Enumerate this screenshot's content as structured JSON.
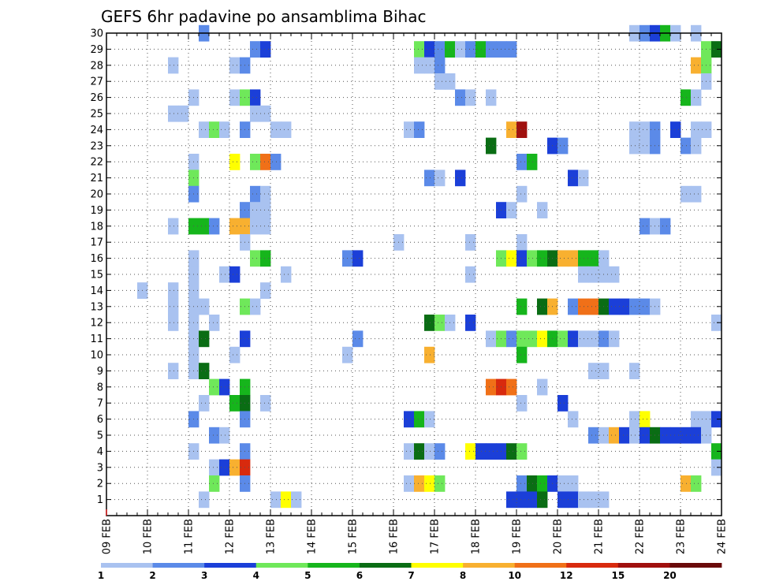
{
  "chart_data": {
    "type": "heatmap",
    "title": "GEFS 6hr padavine po ansamblima Bihac",
    "x_tick_labels": [
      "09 FEB",
      "10 FEB",
      "11 FEB",
      "12 FEB",
      "13 FEB",
      "14 FEB",
      "15 FEB",
      "16 FEB",
      "17 FEB",
      "18 FEB",
      "19 FEB",
      "20 FEB",
      "21 FEB",
      "22 FEB",
      "23 FEB",
      "24 FEB"
    ],
    "y_tick_labels": [
      "1",
      "2",
      "3",
      "4",
      "5",
      "6",
      "7",
      "8",
      "9",
      "10",
      "11",
      "12",
      "13",
      "14",
      "15",
      "16",
      "17",
      "18",
      "19",
      "20",
      "21",
      "22",
      "23",
      "24",
      "25",
      "26",
      "27",
      "28",
      "29",
      "30"
    ],
    "x_range_days": [
      0,
      15
    ],
    "y_range_members": [
      0,
      30
    ],
    "grid": true,
    "legend_position": "bottom",
    "legend": {
      "labels": [
        "1",
        "2",
        "3",
        "4",
        "5",
        "6",
        "7",
        "8",
        "10",
        "12",
        "15",
        "20"
      ],
      "colors": [
        "#a9c2f0",
        "#5b8ae8",
        "#1b3fd8",
        "#6fe85a",
        "#16b51c",
        "#0a6d14",
        "#ffff00",
        "#f8b030",
        "#f07018",
        "#d82a0e",
        "#a0100e",
        "#6a0a0a"
      ]
    },
    "cells": [
      {
        "m": 30,
        "d": 2.25,
        "c": 2
      },
      {
        "m": 30,
        "d": 12.75,
        "c": 1
      },
      {
        "m": 30,
        "d": 13.0,
        "c": 2
      },
      {
        "m": 30,
        "d": 13.25,
        "c": 3
      },
      {
        "m": 30,
        "d": 13.5,
        "c": 5
      },
      {
        "m": 30,
        "d": 13.75,
        "c": 1
      },
      {
        "m": 30,
        "d": 14.25,
        "c": 1
      },
      {
        "m": 29,
        "d": 3.5,
        "c": 2
      },
      {
        "m": 29,
        "d": 3.75,
        "c": 3
      },
      {
        "m": 29,
        "d": 7.5,
        "c": 4
      },
      {
        "m": 29,
        "d": 7.75,
        "c": 3
      },
      {
        "m": 29,
        "d": 8.0,
        "c": 2
      },
      {
        "m": 29,
        "d": 8.25,
        "c": 5
      },
      {
        "m": 29,
        "d": 8.5,
        "c": 1
      },
      {
        "m": 29,
        "d": 8.75,
        "c": 2
      },
      {
        "m": 29,
        "d": 9.0,
        "c": 5
      },
      {
        "m": 29,
        "d": 9.25,
        "c": 2
      },
      {
        "m": 29,
        "d": 9.5,
        "c": 2
      },
      {
        "m": 29,
        "d": 9.75,
        "c": 2
      },
      {
        "m": 29,
        "d": 14.5,
        "c": 4
      },
      {
        "m": 29,
        "d": 14.75,
        "c": 6
      },
      {
        "m": 28,
        "d": 1.5,
        "c": 1
      },
      {
        "m": 28,
        "d": 3.0,
        "c": 1
      },
      {
        "m": 28,
        "d": 3.25,
        "c": 2
      },
      {
        "m": 28,
        "d": 7.5,
        "c": 1
      },
      {
        "m": 28,
        "d": 7.75,
        "c": 1
      },
      {
        "m": 28,
        "d": 8.0,
        "c": 2
      },
      {
        "m": 28,
        "d": 14.25,
        "c": 8
      },
      {
        "m": 28,
        "d": 14.5,
        "c": 4
      },
      {
        "m": 27,
        "d": 8.0,
        "c": 1
      },
      {
        "m": 27,
        "d": 8.25,
        "c": 1
      },
      {
        "m": 27,
        "d": 14.5,
        "c": 1
      },
      {
        "m": 26,
        "d": 2.0,
        "c": 1
      },
      {
        "m": 26,
        "d": 3.0,
        "c": 1
      },
      {
        "m": 26,
        "d": 3.25,
        "c": 4
      },
      {
        "m": 26,
        "d": 3.5,
        "c": 3
      },
      {
        "m": 26,
        "d": 8.5,
        "c": 2
      },
      {
        "m": 26,
        "d": 8.75,
        "c": 1
      },
      {
        "m": 26,
        "d": 9.25,
        "c": 1
      },
      {
        "m": 26,
        "d": 14.0,
        "c": 5
      },
      {
        "m": 26,
        "d": 14.25,
        "c": 1
      },
      {
        "m": 25,
        "d": 1.5,
        "c": 1
      },
      {
        "m": 25,
        "d": 1.75,
        "c": 1
      },
      {
        "m": 25,
        "d": 3.5,
        "c": 1
      },
      {
        "m": 25,
        "d": 3.75,
        "c": 1
      },
      {
        "m": 24,
        "d": 2.25,
        "c": 1
      },
      {
        "m": 24,
        "d": 2.5,
        "c": 4
      },
      {
        "m": 24,
        "d": 2.75,
        "c": 1
      },
      {
        "m": 24,
        "d": 3.25,
        "c": 2
      },
      {
        "m": 24,
        "d": 4.0,
        "c": 1
      },
      {
        "m": 24,
        "d": 4.25,
        "c": 1
      },
      {
        "m": 24,
        "d": 7.25,
        "c": 1
      },
      {
        "m": 24,
        "d": 7.5,
        "c": 2
      },
      {
        "m": 24,
        "d": 9.75,
        "c": 8
      },
      {
        "m": 24,
        "d": 10.0,
        "c": 11
      },
      {
        "m": 24,
        "d": 12.75,
        "c": 1
      },
      {
        "m": 24,
        "d": 13.0,
        "c": 1
      },
      {
        "m": 24,
        "d": 13.25,
        "c": 2
      },
      {
        "m": 24,
        "d": 13.75,
        "c": 3
      },
      {
        "m": 24,
        "d": 14.25,
        "c": 1
      },
      {
        "m": 24,
        "d": 14.5,
        "c": 1
      },
      {
        "m": 23,
        "d": 9.25,
        "c": 6
      },
      {
        "m": 23,
        "d": 10.75,
        "c": 3
      },
      {
        "m": 23,
        "d": 11.0,
        "c": 2
      },
      {
        "m": 23,
        "d": 12.75,
        "c": 1
      },
      {
        "m": 23,
        "d": 13.0,
        "c": 1
      },
      {
        "m": 23,
        "d": 13.25,
        "c": 2
      },
      {
        "m": 23,
        "d": 14.0,
        "c": 2
      },
      {
        "m": 23,
        "d": 14.25,
        "c": 1
      },
      {
        "m": 22,
        "d": 2.0,
        "c": 1
      },
      {
        "m": 22,
        "d": 3.0,
        "c": 7
      },
      {
        "m": 22,
        "d": 3.5,
        "c": 4
      },
      {
        "m": 22,
        "d": 3.75,
        "c": 9
      },
      {
        "m": 22,
        "d": 4.0,
        "c": 2
      },
      {
        "m": 22,
        "d": 10.0,
        "c": 2
      },
      {
        "m": 22,
        "d": 10.25,
        "c": 5
      },
      {
        "m": 21,
        "d": 2.0,
        "c": 4
      },
      {
        "m": 21,
        "d": 7.75,
        "c": 2
      },
      {
        "m": 21,
        "d": 8.0,
        "c": 1
      },
      {
        "m": 21,
        "d": 8.5,
        "c": 3
      },
      {
        "m": 21,
        "d": 11.25,
        "c": 3
      },
      {
        "m": 21,
        "d": 11.5,
        "c": 1
      },
      {
        "m": 20,
        "d": 2.0,
        "c": 2
      },
      {
        "m": 20,
        "d": 3.5,
        "c": 2
      },
      {
        "m": 20,
        "d": 3.75,
        "c": 1
      },
      {
        "m": 20,
        "d": 10.0,
        "c": 1
      },
      {
        "m": 20,
        "d": 14.0,
        "c": 1
      },
      {
        "m": 20,
        "d": 14.25,
        "c": 1
      },
      {
        "m": 19,
        "d": 3.25,
        "c": 2
      },
      {
        "m": 19,
        "d": 3.5,
        "c": 1
      },
      {
        "m": 19,
        "d": 3.75,
        "c": 1
      },
      {
        "m": 19,
        "d": 9.5,
        "c": 3
      },
      {
        "m": 19,
        "d": 9.75,
        "c": 1
      },
      {
        "m": 19,
        "d": 10.5,
        "c": 1
      },
      {
        "m": 18,
        "d": 1.5,
        "c": 1
      },
      {
        "m": 18,
        "d": 2.0,
        "c": 5
      },
      {
        "m": 18,
        "d": 2.25,
        "c": 5
      },
      {
        "m": 18,
        "d": 2.5,
        "c": 2
      },
      {
        "m": 18,
        "d": 3.0,
        "c": 8
      },
      {
        "m": 18,
        "d": 3.25,
        "c": 8
      },
      {
        "m": 18,
        "d": 3.5,
        "c": 1
      },
      {
        "m": 18,
        "d": 3.75,
        "c": 1
      },
      {
        "m": 18,
        "d": 13.0,
        "c": 2
      },
      {
        "m": 18,
        "d": 13.25,
        "c": 1
      },
      {
        "m": 18,
        "d": 13.5,
        "c": 2
      },
      {
        "m": 17,
        "d": 3.25,
        "c": 1
      },
      {
        "m": 17,
        "d": 7.0,
        "c": 1
      },
      {
        "m": 17,
        "d": 8.75,
        "c": 1
      },
      {
        "m": 17,
        "d": 10.0,
        "c": 1
      },
      {
        "m": 16,
        "d": 2.0,
        "c": 1
      },
      {
        "m": 16,
        "d": 3.5,
        "c": 4
      },
      {
        "m": 16,
        "d": 3.75,
        "c": 5
      },
      {
        "m": 16,
        "d": 5.75,
        "c": 2
      },
      {
        "m": 16,
        "d": 6.0,
        "c": 3
      },
      {
        "m": 16,
        "d": 9.5,
        "c": 4
      },
      {
        "m": 16,
        "d": 9.75,
        "c": 7
      },
      {
        "m": 16,
        "d": 10.0,
        "c": 3
      },
      {
        "m": 16,
        "d": 10.25,
        "c": 4
      },
      {
        "m": 16,
        "d": 10.5,
        "c": 5
      },
      {
        "m": 16,
        "d": 10.75,
        "c": 6
      },
      {
        "m": 16,
        "d": 11.0,
        "c": 8
      },
      {
        "m": 16,
        "d": 11.25,
        "c": 8
      },
      {
        "m": 16,
        "d": 11.5,
        "c": 5
      },
      {
        "m": 16,
        "d": 11.75,
        "c": 5
      },
      {
        "m": 16,
        "d": 12.0,
        "c": 1
      },
      {
        "m": 15,
        "d": 2.0,
        "c": 1
      },
      {
        "m": 15,
        "d": 2.75,
        "c": 1
      },
      {
        "m": 15,
        "d": 3.0,
        "c": 3
      },
      {
        "m": 15,
        "d": 4.25,
        "c": 1
      },
      {
        "m": 15,
        "d": 8.75,
        "c": 1
      },
      {
        "m": 15,
        "d": 11.5,
        "c": 1
      },
      {
        "m": 15,
        "d": 11.75,
        "c": 1
      },
      {
        "m": 15,
        "d": 12.0,
        "c": 1
      },
      {
        "m": 15,
        "d": 12.25,
        "c": 1
      },
      {
        "m": 14,
        "d": 0.75,
        "c": 1
      },
      {
        "m": 14,
        "d": 1.5,
        "c": 1
      },
      {
        "m": 14,
        "d": 2.0,
        "c": 1
      },
      {
        "m": 14,
        "d": 3.75,
        "c": 1
      },
      {
        "m": 13,
        "d": 1.5,
        "c": 1
      },
      {
        "m": 13,
        "d": 2.0,
        "c": 1
      },
      {
        "m": 13,
        "d": 2.25,
        "c": 1
      },
      {
        "m": 13,
        "d": 3.25,
        "c": 4
      },
      {
        "m": 13,
        "d": 3.5,
        "c": 1
      },
      {
        "m": 13,
        "d": 10.0,
        "c": 5
      },
      {
        "m": 13,
        "d": 10.5,
        "c": 6
      },
      {
        "m": 13,
        "d": 10.75,
        "c": 8
      },
      {
        "m": 13,
        "d": 11.25,
        "c": 2
      },
      {
        "m": 13,
        "d": 11.5,
        "c": 9
      },
      {
        "m": 13,
        "d": 11.75,
        "c": 9
      },
      {
        "m": 13,
        "d": 12.0,
        "c": 6
      },
      {
        "m": 13,
        "d": 12.25,
        "c": 3
      },
      {
        "m": 13,
        "d": 12.5,
        "c": 3
      },
      {
        "m": 13,
        "d": 12.75,
        "c": 2
      },
      {
        "m": 13,
        "d": 13.0,
        "c": 2
      },
      {
        "m": 13,
        "d": 13.25,
        "c": 1
      },
      {
        "m": 12,
        "d": 1.5,
        "c": 1
      },
      {
        "m": 12,
        "d": 2.0,
        "c": 1
      },
      {
        "m": 12,
        "d": 2.5,
        "c": 1
      },
      {
        "m": 12,
        "d": 7.75,
        "c": 6
      },
      {
        "m": 12,
        "d": 8.0,
        "c": 4
      },
      {
        "m": 12,
        "d": 8.25,
        "c": 1
      },
      {
        "m": 12,
        "d": 8.75,
        "c": 3
      },
      {
        "m": 12,
        "d": 14.75,
        "c": 1
      },
      {
        "m": 11,
        "d": 2.0,
        "c": 1
      },
      {
        "m": 11,
        "d": 2.25,
        "c": 6
      },
      {
        "m": 11,
        "d": 3.25,
        "c": 3
      },
      {
        "m": 11,
        "d": 6.0,
        "c": 2
      },
      {
        "m": 11,
        "d": 9.25,
        "c": 1
      },
      {
        "m": 11,
        "d": 9.5,
        "c": 4
      },
      {
        "m": 11,
        "d": 9.75,
        "c": 2
      },
      {
        "m": 11,
        "d": 10.0,
        "c": 4
      },
      {
        "m": 11,
        "d": 10.25,
        "c": 4
      },
      {
        "m": 11,
        "d": 10.5,
        "c": 7
      },
      {
        "m": 11,
        "d": 10.75,
        "c": 5
      },
      {
        "m": 11,
        "d": 11.0,
        "c": 4
      },
      {
        "m": 11,
        "d": 11.25,
        "c": 3
      },
      {
        "m": 11,
        "d": 11.5,
        "c": 1
      },
      {
        "m": 11,
        "d": 11.75,
        "c": 1
      },
      {
        "m": 11,
        "d": 12.0,
        "c": 2
      },
      {
        "m": 11,
        "d": 12.25,
        "c": 1
      },
      {
        "m": 10,
        "d": 2.0,
        "c": 1
      },
      {
        "m": 10,
        "d": 3.0,
        "c": 1
      },
      {
        "m": 10,
        "d": 5.75,
        "c": 1
      },
      {
        "m": 10,
        "d": 7.75,
        "c": 8
      },
      {
        "m": 10,
        "d": 10.0,
        "c": 5
      },
      {
        "m": 9,
        "d": 1.5,
        "c": 1
      },
      {
        "m": 9,
        "d": 2.0,
        "c": 1
      },
      {
        "m": 9,
        "d": 2.25,
        "c": 6
      },
      {
        "m": 9,
        "d": 11.75,
        "c": 1
      },
      {
        "m": 9,
        "d": 12.0,
        "c": 1
      },
      {
        "m": 9,
        "d": 12.75,
        "c": 1
      },
      {
        "m": 8,
        "d": 2.5,
        "c": 4
      },
      {
        "m": 8,
        "d": 2.75,
        "c": 3
      },
      {
        "m": 8,
        "d": 3.25,
        "c": 5
      },
      {
        "m": 8,
        "d": 9.25,
        "c": 9
      },
      {
        "m": 8,
        "d": 9.5,
        "c": 10
      },
      {
        "m": 8,
        "d": 9.75,
        "c": 9
      },
      {
        "m": 8,
        "d": 10.5,
        "c": 1
      },
      {
        "m": 7,
        "d": 2.25,
        "c": 1
      },
      {
        "m": 7,
        "d": 3.0,
        "c": 5
      },
      {
        "m": 7,
        "d": 3.25,
        "c": 6
      },
      {
        "m": 7,
        "d": 3.75,
        "c": 1
      },
      {
        "m": 7,
        "d": 10.0,
        "c": 1
      },
      {
        "m": 7,
        "d": 11.0,
        "c": 3
      },
      {
        "m": 6,
        "d": 2.0,
        "c": 2
      },
      {
        "m": 6,
        "d": 3.25,
        "c": 2
      },
      {
        "m": 6,
        "d": 7.25,
        "c": 3
      },
      {
        "m": 6,
        "d": 7.5,
        "c": 5
      },
      {
        "m": 6,
        "d": 7.75,
        "c": 1
      },
      {
        "m": 6,
        "d": 11.25,
        "c": 1
      },
      {
        "m": 6,
        "d": 12.75,
        "c": 1
      },
      {
        "m": 6,
        "d": 13.0,
        "c": 7
      },
      {
        "m": 6,
        "d": 14.25,
        "c": 1
      },
      {
        "m": 6,
        "d": 14.5,
        "c": 1
      },
      {
        "m": 6,
        "d": 14.75,
        "c": 3
      },
      {
        "m": 5,
        "d": 2.5,
        "c": 2
      },
      {
        "m": 5,
        "d": 2.75,
        "c": 1
      },
      {
        "m": 5,
        "d": 11.75,
        "c": 2
      },
      {
        "m": 5,
        "d": 12.0,
        "c": 1
      },
      {
        "m": 5,
        "d": 12.25,
        "c": 8
      },
      {
        "m": 5,
        "d": 12.5,
        "c": 3
      },
      {
        "m": 5,
        "d": 12.75,
        "c": 1
      },
      {
        "m": 5,
        "d": 13.0,
        "c": 3
      },
      {
        "m": 5,
        "d": 13.25,
        "c": 6
      },
      {
        "m": 5,
        "d": 13.5,
        "c": 3
      },
      {
        "m": 5,
        "d": 13.75,
        "c": 3
      },
      {
        "m": 5,
        "d": 14.0,
        "c": 3
      },
      {
        "m": 5,
        "d": 14.25,
        "c": 3
      },
      {
        "m": 5,
        "d": 14.5,
        "c": 1
      },
      {
        "m": 4,
        "d": 2.0,
        "c": 1
      },
      {
        "m": 4,
        "d": 3.25,
        "c": 2
      },
      {
        "m": 4,
        "d": 7.25,
        "c": 1
      },
      {
        "m": 4,
        "d": 7.5,
        "c": 6
      },
      {
        "m": 4,
        "d": 7.75,
        "c": 1
      },
      {
        "m": 4,
        "d": 8.0,
        "c": 2
      },
      {
        "m": 4,
        "d": 8.75,
        "c": 7
      },
      {
        "m": 4,
        "d": 9.0,
        "c": 3
      },
      {
        "m": 4,
        "d": 9.25,
        "c": 3
      },
      {
        "m": 4,
        "d": 9.5,
        "c": 3
      },
      {
        "m": 4,
        "d": 9.75,
        "c": 6
      },
      {
        "m": 4,
        "d": 10.0,
        "c": 4
      },
      {
        "m": 4,
        "d": 14.75,
        "c": 5
      },
      {
        "m": 3,
        "d": 2.5,
        "c": 1
      },
      {
        "m": 3,
        "d": 2.75,
        "c": 3
      },
      {
        "m": 3,
        "d": 3.0,
        "c": 8
      },
      {
        "m": 3,
        "d": 3.25,
        "c": 10
      },
      {
        "m": 3,
        "d": 14.75,
        "c": 1
      },
      {
        "m": 2,
        "d": 2.5,
        "c": 4
      },
      {
        "m": 2,
        "d": 3.25,
        "c": 2
      },
      {
        "m": 2,
        "d": 7.25,
        "c": 1
      },
      {
        "m": 2,
        "d": 7.5,
        "c": 8
      },
      {
        "m": 2,
        "d": 7.75,
        "c": 7
      },
      {
        "m": 2,
        "d": 8.0,
        "c": 4
      },
      {
        "m": 2,
        "d": 10.0,
        "c": 2
      },
      {
        "m": 2,
        "d": 10.25,
        "c": 6
      },
      {
        "m": 2,
        "d": 10.5,
        "c": 5
      },
      {
        "m": 2,
        "d": 10.75,
        "c": 3
      },
      {
        "m": 2,
        "d": 11.0,
        "c": 1
      },
      {
        "m": 2,
        "d": 11.25,
        "c": 1
      },
      {
        "m": 2,
        "d": 14.0,
        "c": 8
      },
      {
        "m": 2,
        "d": 14.25,
        "c": 4
      },
      {
        "m": 1,
        "d": 2.25,
        "c": 1
      },
      {
        "m": 1,
        "d": 4.0,
        "c": 1
      },
      {
        "m": 1,
        "d": 4.25,
        "c": 7
      },
      {
        "m": 1,
        "d": 4.5,
        "c": 1
      },
      {
        "m": 1,
        "d": 9.75,
        "c": 3
      },
      {
        "m": 1,
        "d": 10.0,
        "c": 3
      },
      {
        "m": 1,
        "d": 10.25,
        "c": 3
      },
      {
        "m": 1,
        "d": 10.5,
        "c": 6
      },
      {
        "m": 1,
        "d": 11.0,
        "c": 3
      },
      {
        "m": 1,
        "d": 11.25,
        "c": 3
      },
      {
        "m": 1,
        "d": 11.5,
        "c": 1
      },
      {
        "m": 1,
        "d": 11.75,
        "c": 1
      },
      {
        "m": 1,
        "d": 12.0,
        "c": 1
      }
    ]
  }
}
